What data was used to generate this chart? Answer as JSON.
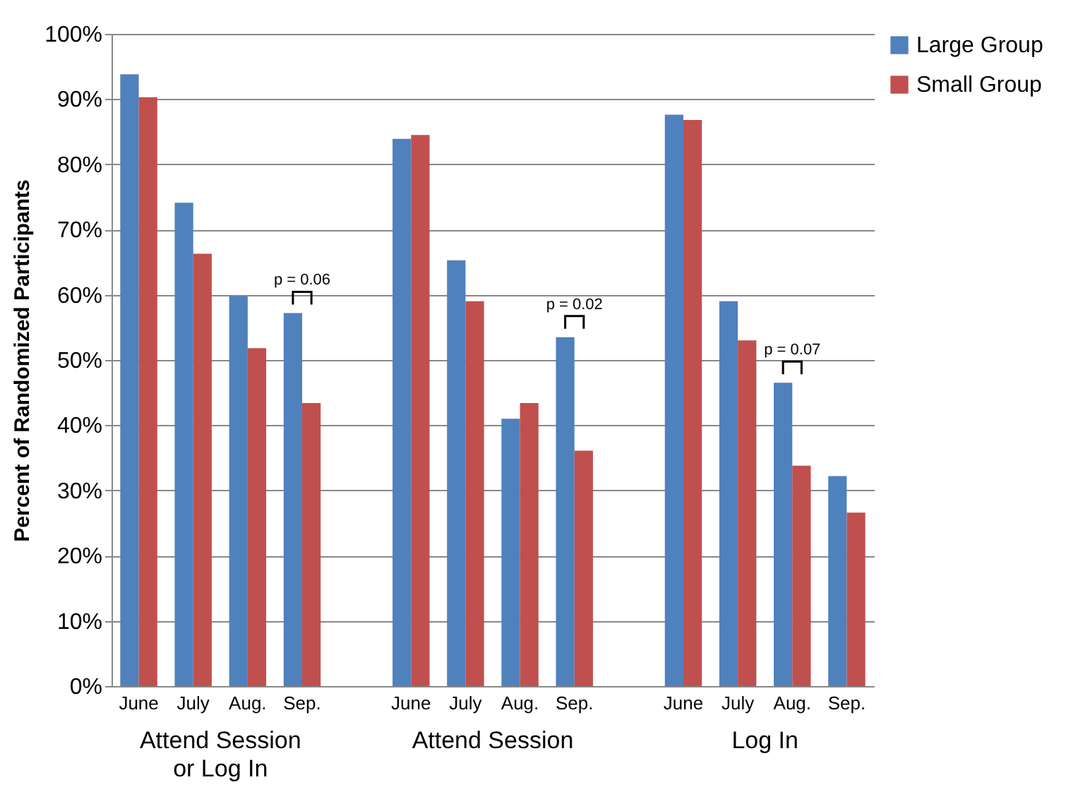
{
  "chart_data": {
    "type": "bar",
    "ylabel": "Percent of Randomized Participants",
    "categories": [
      "June",
      "July",
      "Aug.",
      "Sep.",
      null,
      "June",
      "July",
      "Aug.",
      "Sep.",
      null,
      "June",
      "July",
      "Aug.",
      "Sep."
    ],
    "series": [
      {
        "name": "Large Group",
        "color": "#4f81bd",
        "values": [
          93.8,
          74.1,
          59.8,
          57.2,
          null,
          83.9,
          65.3,
          41.0,
          53.5,
          null,
          87.6,
          59.0,
          46.5,
          32.2
        ]
      },
      {
        "name": "Small Group",
        "color": "#c0504d",
        "values": [
          90.3,
          66.3,
          51.8,
          43.4,
          null,
          84.5,
          59.0,
          43.4,
          36.1,
          null,
          86.8,
          53.0,
          33.8,
          26.6
        ]
      }
    ],
    "ylim": [
      0,
      100
    ],
    "yticks": [
      {
        "value": 0,
        "label": "0%"
      },
      {
        "value": 10,
        "label": "10%"
      },
      {
        "value": 20,
        "label": "20%"
      },
      {
        "value": 30,
        "label": "30%"
      },
      {
        "value": 40,
        "label": "40%"
      },
      {
        "value": 50,
        "label": "50%"
      },
      {
        "value": 60,
        "label": "60%"
      },
      {
        "value": 70,
        "label": "70%"
      },
      {
        "value": 80,
        "label": "80%"
      },
      {
        "value": 90,
        "label": "90%"
      },
      {
        "value": 100,
        "label": "100%"
      }
    ],
    "grid": "y",
    "legend": "right",
    "annotations": [
      "Attend Session or Log In",
      "Attend Session",
      "Log In",
      "p = 0.06",
      "p = 0.02",
      "p = 0.07"
    ]
  }
}
